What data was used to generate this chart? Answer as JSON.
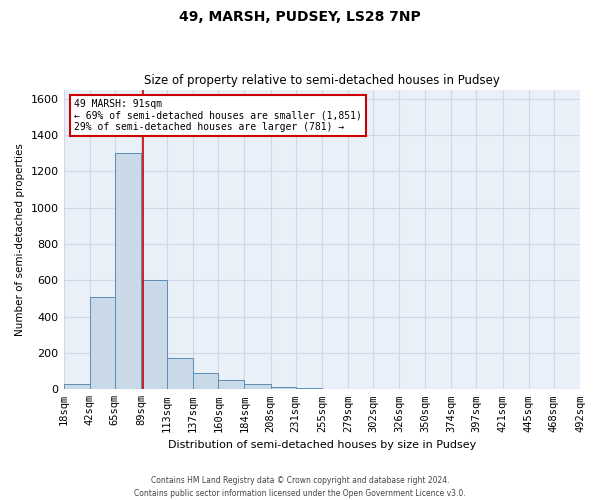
{
  "title1": "49, MARSH, PUDSEY, LS28 7NP",
  "title2": "Size of property relative to semi-detached houses in Pudsey",
  "xlabel": "Distribution of semi-detached houses by size in Pudsey",
  "ylabel": "Number of semi-detached properties",
  "footnote1": "Contains HM Land Registry data © Crown copyright and database right 2024.",
  "footnote2": "Contains public sector information licensed under the Open Government Licence v3.0.",
  "annotation_line1": "49 MARSH: 91sqm",
  "annotation_line2": "← 69% of semi-detached houses are smaller (1,851)",
  "annotation_line3": "29% of semi-detached houses are larger (781) →",
  "property_size": 91,
  "bin_edges": [
    18,
    42,
    65,
    89,
    113,
    137,
    160,
    184,
    208,
    231,
    255,
    279,
    302,
    326,
    350,
    374,
    397,
    421,
    445,
    468,
    492
  ],
  "bar_values": [
    30,
    510,
    1300,
    600,
    170,
    90,
    50,
    30,
    10,
    5,
    3,
    2,
    1,
    1,
    0,
    0,
    0,
    0,
    0,
    0
  ],
  "bar_color": "#c9d9e8",
  "bar_edge_color": "#5b8db8",
  "redline_color": "#cc0000",
  "annotation_box_color": "#cc0000",
  "grid_color": "#d0d8e8",
  "background_color": "#eaf0f8",
  "ylim": [
    0,
    1650
  ],
  "yticks": [
    0,
    200,
    400,
    600,
    800,
    1000,
    1200,
    1400,
    1600
  ]
}
